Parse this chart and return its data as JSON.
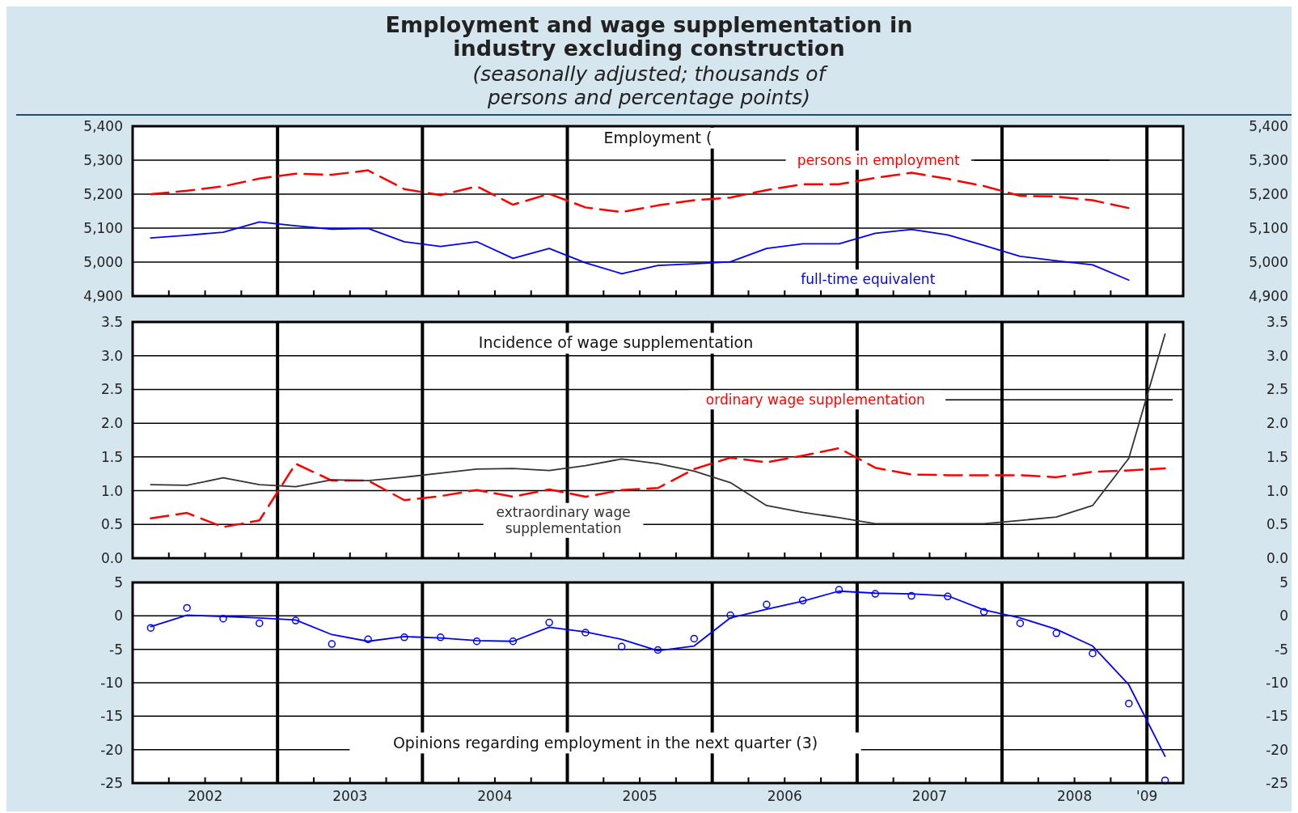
{
  "chart_data": [
    {
      "type": "line",
      "title": "Employment and wage supplementation in industry excluding construction",
      "subtitle": "(seasonally adjusted; thousands of persons and percentage points)",
      "annotations": [
        "Employment ("
      ],
      "x": [
        2002.125,
        2002.375,
        2002.625,
        2002.875,
        2003.125,
        2003.375,
        2003.625,
        2003.875,
        2004.125,
        2004.375,
        2004.625,
        2004.875,
        2005.125,
        2005.375,
        2005.625,
        2005.875,
        2006.125,
        2006.375,
        2006.625,
        2006.875,
        2007.125,
        2007.375,
        2007.625,
        2007.875,
        2008.125,
        2008.375,
        2008.625,
        2008.875
      ],
      "xlim": [
        2002,
        2009.25
      ],
      "xticks": [
        {
          "value": 2002.25,
          "label": null
        },
        {
          "value": 2002.5,
          "label": null
        },
        {
          "value": 2002.75,
          "label": null
        },
        {
          "value": 2003.25,
          "label": null
        },
        {
          "value": 2003.5,
          "label": null
        },
        {
          "value": 2003.75,
          "label": null
        },
        {
          "value": 2004.25,
          "label": null
        },
        {
          "value": 2004.5,
          "label": null
        },
        {
          "value": 2004.75,
          "label": null
        },
        {
          "value": 2005.25,
          "label": null
        },
        {
          "value": 2005.5,
          "label": null
        },
        {
          "value": 2005.75,
          "label": null
        },
        {
          "value": 2006.25,
          "label": null
        },
        {
          "value": 2006.5,
          "label": null
        },
        {
          "value": 2006.75,
          "label": null
        },
        {
          "value": 2007.25,
          "label": null
        },
        {
          "value": 2007.5,
          "label": null
        },
        {
          "value": 2007.75,
          "label": null
        },
        {
          "value": 2008.25,
          "label": null
        },
        {
          "value": 2008.5,
          "label": null
        },
        {
          "value": 2008.75,
          "label": null
        }
      ],
      "ylim": [
        4900,
        5400
      ],
      "yticks": [
        {
          "value": 4900,
          "label": "4,900"
        },
        {
          "value": 5000,
          "label": "5,000"
        },
        {
          "value": 5100,
          "label": "5,100"
        },
        {
          "value": 5200,
          "label": "5,200"
        },
        {
          "value": 5300,
          "label": "5,300"
        },
        {
          "value": 5400,
          "label": "5,400"
        }
      ],
      "y2lim": [
        4900,
        5400
      ],
      "y2ticks": [
        {
          "value": 4900,
          "label": "4,900"
        },
        {
          "value": 5000,
          "label": "5,000"
        },
        {
          "value": 5100,
          "label": "5,100"
        },
        {
          "value": 5200,
          "label": "5,200"
        },
        {
          "value": 5300,
          "label": "5,300"
        },
        {
          "value": 5400,
          "label": "5,400"
        }
      ],
      "grid": "y",
      "tick_labels": "y",
      "ref_lines": [
        {
          "axis": "x",
          "value": 2003
        },
        {
          "axis": "x",
          "value": 2004
        },
        {
          "axis": "x",
          "value": 2005
        },
        {
          "axis": "x",
          "value": 2006
        },
        {
          "axis": "x",
          "value": 2007
        },
        {
          "axis": "x",
          "value": 2008
        },
        {
          "axis": "x",
          "value": 2009
        }
      ],
      "series": [
        {
          "name": "persons in employment",
          "color": "#ff0000",
          "line_style": "dashed",
          "values": [
            5200,
            5210,
            5223,
            5246,
            5260,
            5257,
            5270,
            5215,
            5197,
            5223,
            5169,
            5201,
            5161,
            5147,
            5167,
            5182,
            5190,
            5212,
            5229,
            5229,
            5248,
            5263,
            5245,
            5224,
            5195,
            5193,
            5182,
            5159
          ]
        },
        {
          "name": "full-time equivalent",
          "color": "#0000ff",
          "line_style": "solid",
          "values": [
            5071,
            5079,
            5088,
            5118,
            5107,
            5097,
            5099,
            5060,
            5046,
            5060,
            5011,
            5040,
            4998,
            4966,
            4990,
            4995,
            5001,
            5040,
            5054,
            5054,
            5085,
            5096,
            5080,
            5049,
            5017,
            5004,
            4992,
            4947
          ]
        }
      ]
    },
    {
      "type": "line",
      "annotations": [
        "Incidence of wage supplementation"
      ],
      "x": [
        2002.125,
        2002.375,
        2002.625,
        2002.875,
        2003.125,
        2003.375,
        2003.625,
        2003.875,
        2004.125,
        2004.375,
        2004.625,
        2004.875,
        2005.125,
        2005.375,
        2005.625,
        2005.875,
        2006.125,
        2006.375,
        2006.625,
        2006.875,
        2007.125,
        2007.375,
        2007.625,
        2007.875,
        2008.125,
        2008.375,
        2008.625,
        2008.875,
        2009.125
      ],
      "xlim": [
        2002,
        2009.25
      ],
      "xticks": [
        {
          "value": 2002.25,
          "label": null
        },
        {
          "value": 2002.5,
          "label": null
        },
        {
          "value": 2002.75,
          "label": null
        },
        {
          "value": 2003.25,
          "label": null
        },
        {
          "value": 2003.5,
          "label": null
        },
        {
          "value": 2003.75,
          "label": null
        },
        {
          "value": 2004.25,
          "label": null
        },
        {
          "value": 2004.5,
          "label": null
        },
        {
          "value": 2004.75,
          "label": null
        },
        {
          "value": 2005.25,
          "label": null
        },
        {
          "value": 2005.5,
          "label": null
        },
        {
          "value": 2005.75,
          "label": null
        },
        {
          "value": 2006.25,
          "label": null
        },
        {
          "value": 2006.5,
          "label": null
        },
        {
          "value": 2006.75,
          "label": null
        },
        {
          "value": 2007.25,
          "label": null
        },
        {
          "value": 2007.5,
          "label": null
        },
        {
          "value": 2007.75,
          "label": null
        },
        {
          "value": 2008.25,
          "label": null
        },
        {
          "value": 2008.5,
          "label": null
        },
        {
          "value": 2008.75,
          "label": null
        }
      ],
      "ylim": [
        0,
        3.5
      ],
      "yticks": [
        {
          "value": 0,
          "label": "0.0"
        },
        {
          "value": 0.5,
          "label": "0.5"
        },
        {
          "value": 1,
          "label": "1.0"
        },
        {
          "value": 1.5,
          "label": "1.5"
        },
        {
          "value": 2,
          "label": "2.0"
        },
        {
          "value": 2.5,
          "label": "2.5"
        },
        {
          "value": 3,
          "label": "3.0"
        },
        {
          "value": 3.5,
          "label": "3.5"
        }
      ],
      "y2lim": [
        0,
        3.5
      ],
      "y2ticks": [
        {
          "value": 0,
          "label": "0.0"
        },
        {
          "value": 0.5,
          "label": "0.5"
        },
        {
          "value": 1,
          "label": "1.0"
        },
        {
          "value": 1.5,
          "label": "1.5"
        },
        {
          "value": 2,
          "label": "2.0"
        },
        {
          "value": 2.5,
          "label": "2.5"
        },
        {
          "value": 3,
          "label": "3.0"
        },
        {
          "value": 3.5,
          "label": "3.5"
        }
      ],
      "grid": "y",
      "tick_labels": "y",
      "ref_lines": [
        {
          "axis": "x",
          "value": 2003
        },
        {
          "axis": "x",
          "value": 2004
        },
        {
          "axis": "x",
          "value": 2005
        },
        {
          "axis": "x",
          "value": 2006
        },
        {
          "axis": "x",
          "value": 2007
        },
        {
          "axis": "x",
          "value": 2008
        },
        {
          "axis": "x",
          "value": 2009
        }
      ],
      "series": [
        {
          "name": "ordinary wage supplementation",
          "color": "#ff0000",
          "line_style": "dashed",
          "values": [
            0.59,
            0.67,
            0.46,
            0.56,
            1.4,
            1.15,
            1.15,
            0.86,
            0.92,
            1.01,
            0.91,
            1.02,
            0.91,
            1.01,
            1.04,
            1.32,
            1.49,
            1.42,
            1.52,
            1.63,
            1.34,
            1.24,
            1.23,
            1.23,
            1.23,
            1.2,
            1.28,
            1.3,
            1.33
          ]
        },
        {
          "name": "extraordinary wage supplementation",
          "color": "#333333",
          "line_style": "solid",
          "values": [
            1.09,
            1.08,
            1.19,
            1.09,
            1.06,
            1.16,
            1.15,
            1.2,
            1.26,
            1.32,
            1.33,
            1.3,
            1.37,
            1.47,
            1.4,
            1.29,
            1.12,
            0.78,
            0.68,
            0.6,
            0.51,
            0.51,
            0.51,
            0.51,
            0.56,
            0.61,
            0.78,
            1.48,
            3.32
          ]
        }
      ]
    },
    {
      "type": "line",
      "annotations": [
        "Opinions regarding employment in the next quarter (3)"
      ],
      "x": [
        2002.125,
        2002.375,
        2002.625,
        2002.875,
        2003.125,
        2003.375,
        2003.625,
        2003.875,
        2004.125,
        2004.375,
        2004.625,
        2004.875,
        2005.125,
        2005.375,
        2005.625,
        2005.875,
        2006.125,
        2006.375,
        2006.625,
        2006.875,
        2007.125,
        2007.375,
        2007.625,
        2007.875,
        2008.125,
        2008.375,
        2008.625,
        2008.875,
        2009.125
      ],
      "xlim": [
        2002,
        2009.25
      ],
      "xticks": [
        {
          "value": 2002.25,
          "label": null
        },
        {
          "value": 2002.5,
          "label": "2002"
        },
        {
          "value": 2002.75,
          "label": null
        },
        {
          "value": 2003.25,
          "label": null
        },
        {
          "value": 2003.5,
          "label": "2003"
        },
        {
          "value": 2003.75,
          "label": null
        },
        {
          "value": 2004.25,
          "label": null
        },
        {
          "value": 2004.5,
          "label": "2004"
        },
        {
          "value": 2004.75,
          "label": null
        },
        {
          "value": 2005.25,
          "label": null
        },
        {
          "value": 2005.5,
          "label": "2005"
        },
        {
          "value": 2005.75,
          "label": null
        },
        {
          "value": 2006.25,
          "label": null
        },
        {
          "value": 2006.5,
          "label": "2006"
        },
        {
          "value": 2006.75,
          "label": null
        },
        {
          "value": 2007.25,
          "label": null
        },
        {
          "value": 2007.5,
          "label": "2007"
        },
        {
          "value": 2007.75,
          "label": null
        },
        {
          "value": 2008.25,
          "label": null
        },
        {
          "value": 2008.5,
          "label": "2008"
        },
        {
          "value": 2008.75,
          "label": null
        },
        {
          "value": 2009,
          "label": "'09"
        }
      ],
      "ylim": [
        -25,
        5
      ],
      "yticks": [
        -25,
        -20,
        -15,
        -10,
        -5,
        0,
        5
      ],
      "y2lim": [
        -25,
        5
      ],
      "y2ticks": [
        -25,
        -20,
        -15,
        -10,
        -5,
        0,
        5
      ],
      "grid": "y",
      "ref_lines": [
        {
          "axis": "x",
          "value": 2003
        },
        {
          "axis": "x",
          "value": 2004
        },
        {
          "axis": "x",
          "value": 2005
        },
        {
          "axis": "x",
          "value": 2006
        },
        {
          "axis": "x",
          "value": 2007
        },
        {
          "axis": "x",
          "value": 2008
        },
        {
          "axis": "x",
          "value": 2009
        }
      ],
      "series": [
        {
          "type": "line",
          "color": "#0000ff",
          "line_style": "solid",
          "marker": "none",
          "values": [
            -1.6,
            0.1,
            -0.1,
            -0.3,
            -0.6,
            -2.8,
            -3.8,
            -3.1,
            -3.3,
            -3.7,
            -3.8,
            -1.7,
            -2.4,
            -3.5,
            -5.2,
            -4.5,
            -0.3,
            1.0,
            2.2,
            3.7,
            3.4,
            3.3,
            3.0,
            0.9,
            -0.3,
            -2.0,
            -4.5,
            -10.3,
            -21.0
          ]
        },
        {
          "type": "scatter",
          "color": "#0000ff",
          "marker": "circle",
          "values": [
            -1.8,
            1.2,
            -0.4,
            -1.1,
            -0.7,
            -4.2,
            -3.5,
            -3.2,
            -3.2,
            -3.8,
            -3.8,
            -1.0,
            -2.5,
            -4.6,
            -5.1,
            -3.4,
            0.1,
            1.7,
            2.3,
            3.9,
            3.3,
            3.0,
            2.9,
            0.6,
            -1.1,
            -2.6,
            -5.6,
            -13.1,
            -24.6
          ]
        }
      ]
    }
  ]
}
